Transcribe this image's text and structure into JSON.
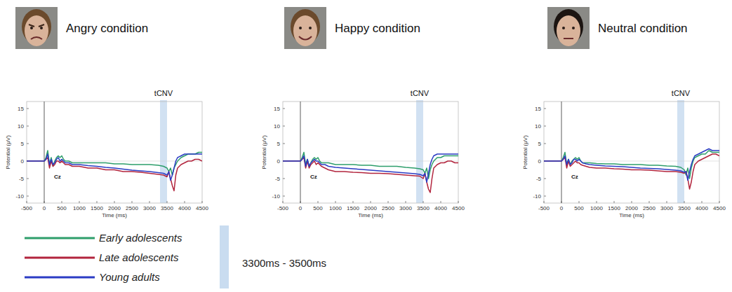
{
  "chart_data": [
    {
      "type": "line",
      "title": "Angry condition",
      "xlabel": "Time (ms)",
      "ylabel": "Potential (μV)",
      "annotation": "Cz",
      "band": [
        3300,
        3500
      ],
      "band_label": "tCNV",
      "legend": "bottom",
      "xlim": [
        -500,
        4500
      ],
      "xticks": [
        -500,
        0,
        500,
        1000,
        1500,
        2000,
        2500,
        3000,
        3500,
        4000,
        4500
      ],
      "ylim": [
        -12,
        17
      ],
      "yticks": [
        -10,
        -5,
        0,
        5,
        10,
        15
      ],
      "x": [
        -500,
        -250,
        0,
        50,
        100,
        150,
        200,
        250,
        300,
        350,
        400,
        450,
        500,
        550,
        600,
        700,
        800,
        1000,
        1250,
        1500,
        1750,
        2000,
        2250,
        2500,
        2750,
        3000,
        3250,
        3400,
        3500,
        3550,
        3600,
        3650,
        3700,
        3750,
        3800,
        3900,
        4000,
        4100,
        4200,
        4300,
        4400,
        4500
      ],
      "series": [
        {
          "name": "Early adolescents",
          "color": "#2e9e6b",
          "values": [
            0,
            0,
            0,
            1,
            3,
            -1,
            1,
            -1.5,
            0,
            1,
            1.5,
            1,
            1.5,
            0.5,
            0,
            0,
            -0.5,
            -0.5,
            -0.5,
            -0.5,
            -0.5,
            -0.8,
            -0.8,
            -1,
            -1,
            -1,
            -1.2,
            -1.5,
            -2,
            -3,
            -2,
            -4,
            -2,
            -1,
            0,
            1,
            1.5,
            2,
            2,
            2,
            2.5,
            2.5
          ]
        },
        {
          "name": "Late adolescents",
          "color": "#b2243d",
          "values": [
            0,
            0,
            0,
            0.5,
            1,
            -2,
            0,
            -1.5,
            -1,
            0,
            0,
            -0.5,
            0,
            -0.5,
            -1,
            -1,
            -1.5,
            -1.5,
            -2,
            -2,
            -2.5,
            -2.5,
            -3,
            -3,
            -3.2,
            -3.5,
            -3.8,
            -4,
            -4.5,
            -3,
            -5,
            -7,
            -8.5,
            -4,
            -2,
            -1,
            -0.5,
            0,
            0,
            0.5,
            0.5,
            0
          ]
        },
        {
          "name": "Young adults",
          "color": "#2b3cc4",
          "values": [
            0,
            0,
            0,
            0.5,
            2,
            -1,
            0.5,
            -1,
            -0.5,
            0.5,
            1,
            0,
            0.5,
            0,
            -0.5,
            -0.5,
            -1,
            -1,
            -1.3,
            -1.5,
            -1.8,
            -2,
            -2.3,
            -2.6,
            -2.8,
            -3,
            -3.3,
            -3.5,
            -4,
            -3,
            -5.5,
            -4,
            -2,
            0,
            1,
            1.5,
            2,
            2,
            2,
            2,
            2,
            2
          ]
        }
      ]
    },
    {
      "type": "line",
      "title": "Happy condition",
      "xlabel": "Time (ms)",
      "ylabel": "Potential (μV)",
      "annotation": "Cz",
      "band": [
        3300,
        3500
      ],
      "band_label": "tCNV",
      "xlim": [
        -500,
        4500
      ],
      "xticks": [
        -500,
        0,
        500,
        1000,
        1500,
        2000,
        2500,
        3000,
        3500,
        4000,
        4500
      ],
      "ylim": [
        -12,
        17
      ],
      "yticks": [
        -10,
        -5,
        0,
        5,
        10,
        15
      ],
      "x": [
        -500,
        -250,
        0,
        50,
        100,
        150,
        200,
        250,
        300,
        350,
        400,
        450,
        500,
        550,
        600,
        700,
        800,
        1000,
        1250,
        1500,
        1750,
        2000,
        2250,
        2500,
        2750,
        3000,
        3250,
        3400,
        3500,
        3550,
        3600,
        3650,
        3700,
        3750,
        3800,
        3900,
        4000,
        4100,
        4200,
        4300,
        4400,
        4500
      ],
      "series": [
        {
          "name": "Early adolescents",
          "color": "#2e9e6b",
          "values": [
            0,
            0,
            0,
            1,
            2.5,
            -1,
            0.5,
            -1.5,
            -0.5,
            0.5,
            1,
            0.5,
            1,
            0,
            -0.5,
            -0.5,
            -0.5,
            -1,
            -1,
            -1,
            -1.2,
            -1.2,
            -1.5,
            -1.5,
            -1.5,
            -1.8,
            -2,
            -2.2,
            -2.5,
            -3.5,
            -2,
            -5,
            -2.5,
            -1,
            0,
            1,
            1,
            1.5,
            1.5,
            1.5,
            1.5,
            1.5
          ]
        },
        {
          "name": "Late adolescents",
          "color": "#b2243d",
          "values": [
            0,
            0,
            0,
            0.5,
            1,
            -2,
            0,
            -2,
            -1,
            -0.5,
            0,
            -1,
            -0.5,
            -1,
            -1.5,
            -2,
            -2.5,
            -3,
            -3,
            -3.2,
            -3.3,
            -3.5,
            -3.5,
            -3.6,
            -3.8,
            -4,
            -4.2,
            -4.3,
            -5,
            -3.5,
            -6,
            -8,
            -9,
            -5,
            -2,
            -1,
            -0.5,
            -0.5,
            0,
            0,
            -0.5,
            -0.5
          ]
        },
        {
          "name": "Young adults",
          "color": "#2b3cc4",
          "values": [
            0,
            0,
            0,
            0.5,
            1.5,
            -1.5,
            0.5,
            -1.5,
            -0.5,
            0,
            0.5,
            0,
            0,
            -0.5,
            -1,
            -1,
            -1.5,
            -1.8,
            -2,
            -2.2,
            -2.4,
            -2.6,
            -2.8,
            -3,
            -3.2,
            -3.4,
            -3.6,
            -3.8,
            -4.2,
            -3.5,
            -6,
            -3.5,
            -1,
            0.5,
            1.5,
            2,
            2,
            2,
            2,
            2,
            2,
            2
          ]
        }
      ]
    },
    {
      "type": "line",
      "title": "Neutral condition",
      "xlabel": "Time (ms)",
      "ylabel": "Potential (μV)",
      "annotation": "Cz",
      "band": [
        3300,
        3500
      ],
      "band_label": "tCNV",
      "xlim": [
        -500,
        4500
      ],
      "xticks": [
        -500,
        0,
        500,
        1000,
        1500,
        2000,
        2500,
        3000,
        3500,
        4000,
        4500
      ],
      "ylim": [
        -12,
        17
      ],
      "yticks": [
        -10,
        -5,
        0,
        5,
        10,
        15
      ],
      "x": [
        -500,
        -250,
        0,
        50,
        100,
        150,
        200,
        250,
        300,
        350,
        400,
        450,
        500,
        550,
        600,
        700,
        800,
        1000,
        1250,
        1500,
        1750,
        2000,
        2250,
        2500,
        2750,
        3000,
        3250,
        3400,
        3500,
        3550,
        3600,
        3650,
        3700,
        3750,
        3800,
        3900,
        4000,
        4100,
        4200,
        4300,
        4400,
        4500
      ],
      "series": [
        {
          "name": "Early adolescents",
          "color": "#2e9e6b",
          "values": [
            0,
            0,
            0,
            1,
            2.5,
            -1,
            0.5,
            -1,
            0,
            0.5,
            1,
            0.5,
            1,
            0,
            -0.5,
            -0.5,
            -0.5,
            -0.7,
            -0.8,
            -0.8,
            -1,
            -1,
            -1,
            -1.2,
            -1.2,
            -1.4,
            -1.5,
            -1.8,
            -2.5,
            -4,
            -2,
            -5,
            -2,
            0,
            1,
            1.5,
            2,
            2,
            3,
            2.5,
            2.5,
            2.5
          ]
        },
        {
          "name": "Late adolescents",
          "color": "#b2243d",
          "values": [
            0,
            0,
            0,
            0.5,
            1,
            -2,
            0,
            -1.5,
            -1,
            -0.5,
            0,
            -0.5,
            -0.5,
            -1,
            -1.2,
            -1.5,
            -1.8,
            -2,
            -2,
            -2.2,
            -2.3,
            -2.5,
            -2.5,
            -2.6,
            -2.8,
            -3,
            -3,
            -3.2,
            -3.5,
            -3,
            -5,
            -8,
            -6,
            -3,
            -1,
            0,
            0.5,
            1,
            1.5,
            2,
            2,
            1.5
          ]
        },
        {
          "name": "Young adults",
          "color": "#2b3cc4",
          "values": [
            0,
            0,
            0,
            0.5,
            1.5,
            -1,
            0.5,
            -1,
            -0.5,
            0.5,
            0.5,
            0,
            0.5,
            0,
            -0.5,
            -0.8,
            -1,
            -1.2,
            -1.4,
            -1.5,
            -1.6,
            -1.8,
            -2,
            -2.1,
            -2.2,
            -2.4,
            -2.6,
            -2.8,
            -3.2,
            -3,
            -5.5,
            -3,
            -1,
            0.5,
            1.5,
            2,
            2.5,
            3,
            3.5,
            3,
            3,
            3
          ]
        }
      ]
    }
  ],
  "band_legend": "3300ms - 3500ms"
}
